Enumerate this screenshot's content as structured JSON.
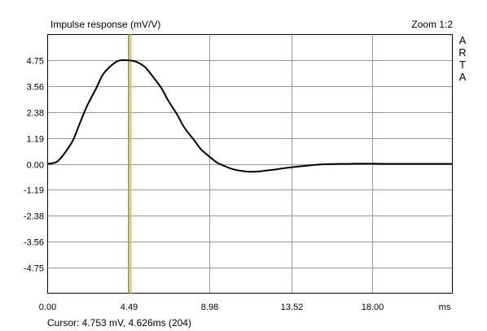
{
  "chart_data": {
    "type": "line",
    "title": "Impulse response (mV/V)",
    "zoom_label": "Zoom 1:2",
    "brand": [
      "A",
      "R",
      "T",
      "A"
    ],
    "xlabel": "ms",
    "ylabel": "",
    "xlim": [
      0,
      22.45
    ],
    "ylim": [
      -5.95,
      5.95
    ],
    "x_ticks": [
      "0.00",
      "4.49",
      "8.98",
      "13.52",
      "18.00"
    ],
    "x_tick_values": [
      0,
      4.49,
      8.98,
      13.52,
      18.0
    ],
    "y_ticks": [
      "4.75",
      "3.56",
      "2.38",
      "1.19",
      "0.00",
      "-1.19",
      "-2.38",
      "-3.56",
      "-4.75"
    ],
    "y_tick_values": [
      4.75,
      3.56,
      2.38,
      1.19,
      0,
      -1.19,
      -2.38,
      -3.56,
      -4.75
    ],
    "grid": true,
    "cursor": {
      "x": 4.626,
      "y": 4.753,
      "readout": "Cursor: 4.753 mV, 4.626ms (204)"
    },
    "marker_x": 4.49,
    "series": [
      {
        "x": [
          0,
          0.5,
          0.9,
          1.4,
          1.8,
          2.2,
          2.7,
          3.1,
          3.6,
          4.0,
          4.5,
          4.9,
          5.4,
          5.8,
          6.3,
          6.7,
          7.2,
          7.6,
          8.1,
          8.5,
          9.0,
          9.4,
          9.9,
          10.3,
          10.8,
          11.2,
          11.7,
          12.1,
          12.6,
          13.0,
          13.5,
          13.9,
          14.4,
          14.8,
          15.3,
          15.7,
          16.2,
          16.6,
          17.1,
          17.5,
          18.0,
          18.9,
          19.8,
          20.7,
          21.6,
          22.45
        ],
        "y": [
          0.0,
          0.08,
          0.42,
          1.05,
          1.85,
          2.65,
          3.45,
          4.12,
          4.55,
          4.74,
          4.75,
          4.69,
          4.45,
          4.05,
          3.5,
          2.9,
          2.25,
          1.65,
          1.12,
          0.68,
          0.32,
          0.06,
          -0.13,
          -0.25,
          -0.33,
          -0.36,
          -0.35,
          -0.31,
          -0.26,
          -0.21,
          -0.16,
          -0.12,
          -0.08,
          -0.05,
          -0.02,
          -0.01,
          0.0,
          0.0,
          0.01,
          0.01,
          0.01,
          0.0,
          0.0,
          0.0,
          0.0,
          0.0
        ]
      }
    ],
    "colors": {
      "line": "#000000",
      "grid": "#999999",
      "frame": "#000000",
      "cursor_line": "#e6b800",
      "marker_line": "#9a9a40"
    }
  }
}
